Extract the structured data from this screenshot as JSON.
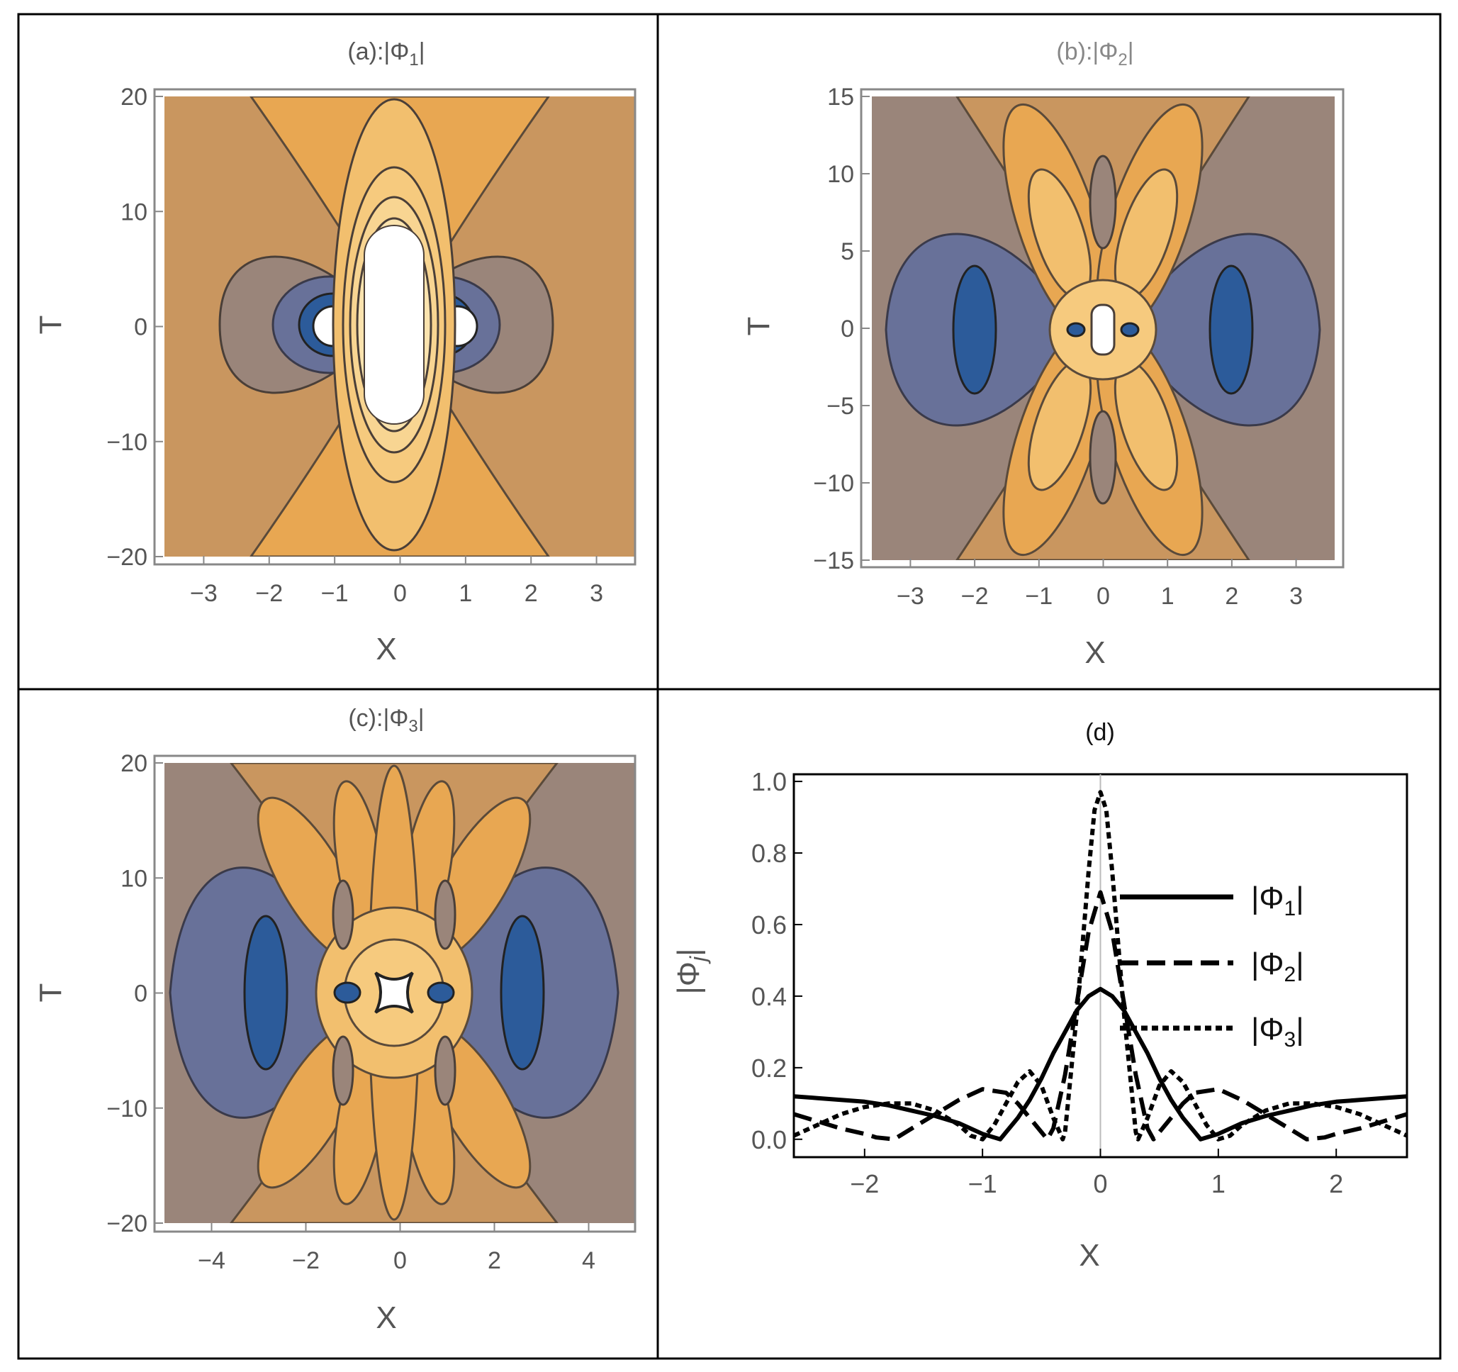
{
  "chart_data": [
    {
      "type": "contour",
      "panel": "a",
      "title": "(a):|Φ",
      "title_sub": "1",
      "title_end": "|",
      "xlabel": "X",
      "ylabel": "T",
      "xlim": [
        -3.6,
        3.6
      ],
      "ylim": [
        -20,
        20
      ],
      "xticks": [
        -3,
        -2,
        -1,
        0,
        1,
        2,
        3
      ],
      "xtick_labels": [
        "−3",
        "−2",
        "−1",
        "0",
        "1",
        "2",
        "3"
      ],
      "yticks": [
        -20,
        -10,
        0,
        10,
        20
      ],
      "ytick_labels": [
        "−20",
        "−10",
        "0",
        "10",
        "20"
      ]
    },
    {
      "type": "contour",
      "panel": "b",
      "title": "(b):|Φ",
      "title_sub": "2",
      "title_end": "|",
      "xlabel": "X",
      "ylabel": "T",
      "xlim": [
        -3.6,
        3.6
      ],
      "ylim": [
        -15,
        15
      ],
      "xticks": [
        -3,
        -2,
        -1,
        0,
        1,
        2,
        3
      ],
      "xtick_labels": [
        "−3",
        "−2",
        "−1",
        "0",
        "1",
        "2",
        "3"
      ],
      "yticks": [
        -15,
        -10,
        -5,
        0,
        5,
        10,
        15
      ],
      "ytick_labels": [
        "−15",
        "−10",
        "−5",
        "0",
        "5",
        "10",
        "15"
      ]
    },
    {
      "type": "contour",
      "panel": "c",
      "title": "(c):|Φ",
      "title_sub": "3",
      "title_end": "|",
      "xlabel": "X",
      "ylabel": "T",
      "xlim": [
        -5,
        5
      ],
      "ylim": [
        -20,
        20
      ],
      "xticks": [
        -4,
        -2,
        0,
        2,
        4
      ],
      "xtick_labels": [
        "−4",
        "−2",
        "0",
        "2",
        "4"
      ],
      "yticks": [
        -20,
        -10,
        0,
        10,
        20
      ],
      "ytick_labels": [
        "−20",
        "−10",
        "0",
        "10",
        "20"
      ]
    },
    {
      "type": "line",
      "panel": "d",
      "title": "(d)",
      "xlabel": "X",
      "ylabel": "|Φ",
      "ylabel_sub": "j",
      "ylabel_end": "|",
      "xlim": [
        -2.6,
        2.6
      ],
      "ylim": [
        -0.05,
        1.02
      ],
      "xticks": [
        -2,
        -1,
        0,
        1,
        2
      ],
      "xtick_labels": [
        "−2",
        "−1",
        "0",
        "1",
        "2"
      ],
      "yticks": [
        0,
        0.2,
        0.4,
        0.6,
        0.8,
        1.0
      ],
      "ytick_labels": [
        "0.0",
        "0.2",
        "0.4",
        "0.6",
        "0.8",
        "1.0"
      ],
      "legend_position": "right",
      "series": [
        {
          "name": "|Φ1|",
          "legend_main": "|Φ",
          "legend_sub": "1",
          "legend_end": "|",
          "style": "solid",
          "x": [
            -2.6,
            -2.4,
            -2.2,
            -2.0,
            -1.8,
            -1.6,
            -1.4,
            -1.2,
            -1.0,
            -0.9,
            -0.85,
            -0.8,
            -0.7,
            -0.6,
            -0.5,
            -0.4,
            -0.3,
            -0.2,
            -0.1,
            0.0,
            0.1,
            0.2,
            0.3,
            0.4,
            0.5,
            0.6,
            0.7,
            0.8,
            0.85,
            0.9,
            1.0,
            1.2,
            1.4,
            1.6,
            1.8,
            2.0,
            2.2,
            2.4,
            2.6
          ],
          "values": [
            0.12,
            0.115,
            0.11,
            0.105,
            0.095,
            0.08,
            0.065,
            0.045,
            0.015,
            0.005,
            0.0,
            0.02,
            0.06,
            0.11,
            0.17,
            0.24,
            0.3,
            0.36,
            0.4,
            0.42,
            0.4,
            0.36,
            0.3,
            0.24,
            0.17,
            0.11,
            0.06,
            0.02,
            0.0,
            0.005,
            0.015,
            0.045,
            0.065,
            0.08,
            0.095,
            0.105,
            0.11,
            0.115,
            0.12
          ]
        },
        {
          "name": "|Φ2|",
          "legend_main": "|Φ",
          "legend_sub": "2",
          "legend_end": "|",
          "style": "dashed",
          "x": [
            -2.6,
            -2.4,
            -2.2,
            -2.0,
            -1.9,
            -1.75,
            -1.6,
            -1.4,
            -1.2,
            -1.0,
            -0.8,
            -0.7,
            -0.6,
            -0.5,
            -0.45,
            -0.4,
            -0.3,
            -0.2,
            -0.1,
            0.0,
            0.1,
            0.2,
            0.3,
            0.4,
            0.45,
            0.5,
            0.6,
            0.7,
            0.8,
            1.0,
            1.2,
            1.4,
            1.6,
            1.75,
            1.9,
            2.0,
            2.2,
            2.4,
            2.6
          ],
          "values": [
            0.07,
            0.05,
            0.03,
            0.015,
            0.005,
            0.0,
            0.03,
            0.07,
            0.11,
            0.14,
            0.13,
            0.1,
            0.06,
            0.02,
            0.0,
            0.03,
            0.18,
            0.38,
            0.58,
            0.69,
            0.58,
            0.38,
            0.18,
            0.03,
            0.0,
            0.02,
            0.06,
            0.1,
            0.13,
            0.14,
            0.11,
            0.07,
            0.03,
            0.0,
            0.005,
            0.015,
            0.03,
            0.05,
            0.07
          ]
        },
        {
          "name": "|Φ3|",
          "legend_main": "|Φ",
          "legend_sub": "3",
          "legend_end": "|",
          "style": "dotted",
          "x": [
            -2.6,
            -2.4,
            -2.2,
            -2.0,
            -1.8,
            -1.6,
            -1.4,
            -1.2,
            -1.1,
            -1.0,
            -0.9,
            -0.8,
            -0.7,
            -0.6,
            -0.5,
            -0.4,
            -0.32,
            -0.3,
            -0.2,
            -0.1,
            -0.05,
            0.0,
            0.05,
            0.1,
            0.2,
            0.3,
            0.32,
            0.4,
            0.5,
            0.6,
            0.7,
            0.8,
            0.9,
            1.0,
            1.1,
            1.2,
            1.4,
            1.6,
            1.8,
            2.0,
            2.2,
            2.4,
            2.6
          ],
          "values": [
            0.01,
            0.04,
            0.07,
            0.09,
            0.1,
            0.1,
            0.08,
            0.04,
            0.01,
            0.0,
            0.04,
            0.1,
            0.16,
            0.19,
            0.15,
            0.06,
            0.0,
            0.02,
            0.35,
            0.75,
            0.92,
            0.97,
            0.92,
            0.75,
            0.35,
            0.02,
            0.0,
            0.06,
            0.15,
            0.19,
            0.16,
            0.1,
            0.04,
            0.0,
            0.01,
            0.04,
            0.08,
            0.1,
            0.1,
            0.09,
            0.07,
            0.04,
            0.01
          ]
        }
      ]
    }
  ]
}
